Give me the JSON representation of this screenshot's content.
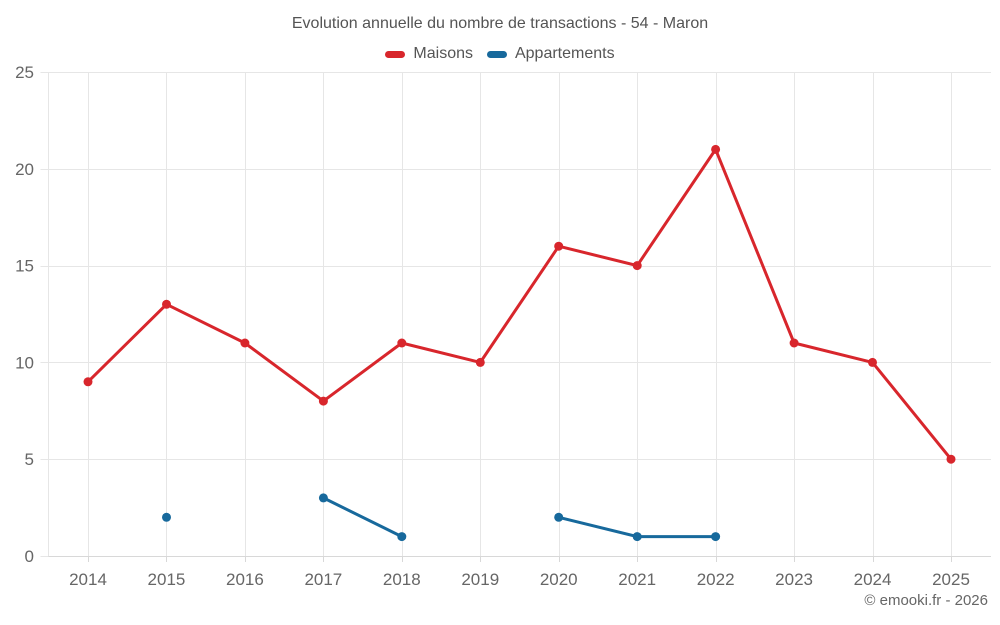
{
  "chart_data": {
    "type": "line",
    "title": "Evolution annuelle du nombre de transactions - 54 - Maron",
    "categories": [
      "2014",
      "2015",
      "2016",
      "2017",
      "2018",
      "2019",
      "2020",
      "2021",
      "2022",
      "2023",
      "2024",
      "2025"
    ],
    "series": [
      {
        "name": "Maisons",
        "color": "#d8262c",
        "values": [
          9,
          13,
          11,
          8,
          11,
          10,
          16,
          15,
          21,
          11,
          10,
          5
        ]
      },
      {
        "name": "Appartements",
        "color": "#17699c",
        "values": [
          null,
          2,
          null,
          3,
          1,
          null,
          2,
          1,
          1,
          null,
          null,
          null
        ]
      }
    ],
    "ylim": [
      0,
      25
    ],
    "yticks": [
      0,
      5,
      10,
      15,
      20,
      25
    ],
    "grid": true,
    "legend_position": "top",
    "credit": "© emooki.fr - 2026"
  },
  "colors": {
    "background": "#ffffff",
    "grid": "#e6e6e6",
    "axis": "#d8d8d8",
    "title_text": "#545454",
    "tick_text": "#666666",
    "legend_text": "#555555",
    "credit_text": "#666666"
  }
}
